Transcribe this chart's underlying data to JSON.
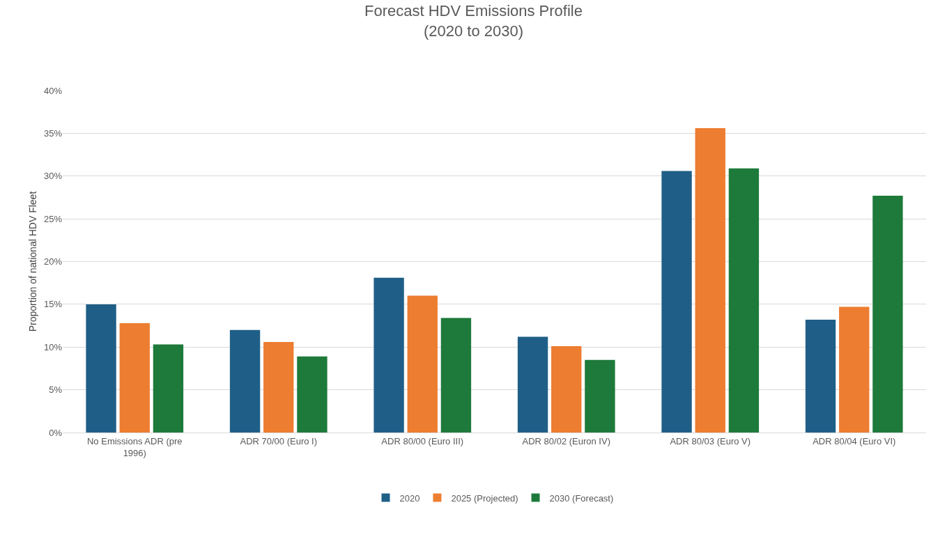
{
  "chart_data": {
    "type": "bar",
    "title": "Forecast HDV Emissions Profile\n(2020 to 2030)",
    "ylabel": "Proportion of national HDV Fleet",
    "categories": [
      "No Emissions ADR (pre 1996)",
      "ADR 70/00 (Euro I)",
      "ADR 80/00 (Euro III)",
      "ADR 80/02 (Euron IV)",
      "ADR 80/03 (Euro V)",
      "ADR 80/04 (Euro VI)"
    ],
    "series": [
      {
        "name": "2020",
        "color": "#1f5f87",
        "values": [
          15,
          12,
          18.1,
          11.2,
          30.6,
          13.2
        ]
      },
      {
        "name": "2025 (Projected)",
        "color": "#ed7d31",
        "values": [
          12.8,
          10.6,
          16,
          10.1,
          35.6,
          14.7
        ]
      },
      {
        "name": "2030 (Forecast)",
        "color": "#1e7a3a",
        "values": [
          10.3,
          8.9,
          13.4,
          8.5,
          30.9,
          27.7
        ]
      }
    ],
    "ylim": [
      0,
      40
    ],
    "yticks": [
      {
        "value": 0,
        "label": "0%"
      },
      {
        "value": 5,
        "label": "5%"
      },
      {
        "value": 10,
        "label": "10%"
      },
      {
        "value": 15,
        "label": "15%"
      },
      {
        "value": 20,
        "label": "20%"
      },
      {
        "value": 25,
        "label": "25%"
      },
      {
        "value": 30,
        "label": "30%"
      },
      {
        "value": 35,
        "label": "35%"
      },
      {
        "value": 40,
        "label": "40%"
      }
    ],
    "grid": "y",
    "legend": "bottom"
  }
}
